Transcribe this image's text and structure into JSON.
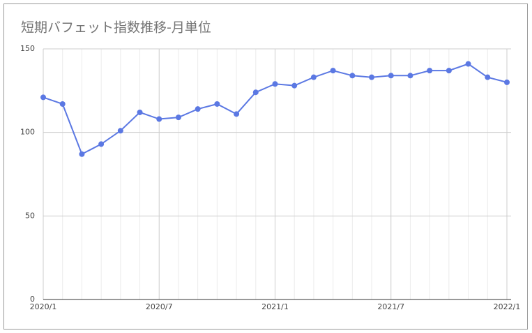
{
  "chart_data": {
    "type": "line",
    "title": "短期バフェット指数推移-月単位",
    "categories": [
      "2020/1",
      null,
      null,
      null,
      null,
      null,
      "2020/7",
      null,
      null,
      null,
      null,
      null,
      "2021/1",
      null,
      null,
      null,
      null,
      null,
      "2021/7",
      null,
      null,
      null,
      null,
      null,
      "2022/1"
    ],
    "values": [
      121,
      117,
      87,
      93,
      101,
      112,
      108,
      109,
      114,
      117,
      111,
      124,
      129,
      128,
      133,
      137,
      134,
      133,
      134,
      134,
      137,
      137,
      141,
      133,
      130
    ],
    "color": "#5b78e3",
    "ylim": [
      0,
      150
    ],
    "yticks": [
      0,
      50,
      100,
      150
    ],
    "grid": true
  }
}
